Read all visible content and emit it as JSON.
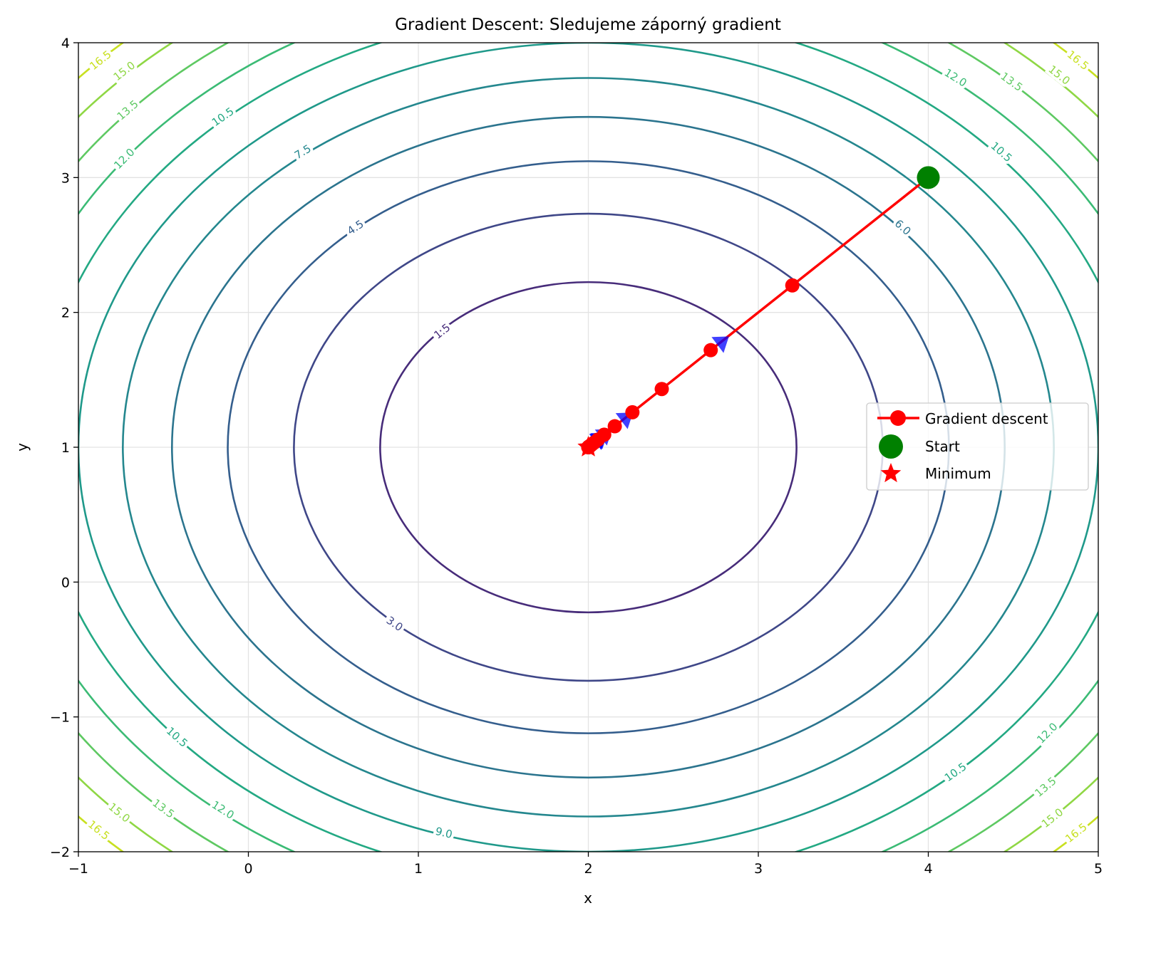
{
  "chart_data": {
    "type": "line",
    "title": "Gradient Descent: Sledujeme záporný gradient",
    "xlabel": "x",
    "ylabel": "y",
    "xlim": [
      -1,
      5
    ],
    "ylim": [
      -2,
      4
    ],
    "xticks": [
      -1,
      0,
      1,
      2,
      3,
      4,
      5
    ],
    "xtick_labels": [
      "−1",
      "0",
      "1",
      "2",
      "3",
      "4",
      "5"
    ],
    "yticks": [
      -2,
      -1,
      0,
      1,
      2,
      3,
      4
    ],
    "ytick_labels": [
      "−2",
      "−1",
      "0",
      "1",
      "2",
      "3",
      "4"
    ],
    "grid": true,
    "function": "f(x,y) = (x-2)^2 + (y-1)^2",
    "contour": {
      "center": [
        2,
        1
      ],
      "levels": [
        1.5,
        3.0,
        4.5,
        6.0,
        7.5,
        9.0,
        10.5,
        12.0,
        13.5,
        15.0,
        16.5
      ],
      "colors": [
        "#472c7a",
        "#3f4788",
        "#345e8d",
        "#2b748e",
        "#24878e",
        "#1f998a",
        "#23a983",
        "#3bbb75",
        "#5ec962",
        "#8fd744",
        "#c8e020"
      ],
      "labels": [
        {
          "text": "1.5",
          "level": 1.5,
          "at": [
            [
              1.14,
              1.86
            ]
          ]
        },
        {
          "text": "3.0",
          "level": 3.0,
          "at": [
            [
              0.86,
              -0.31
            ]
          ]
        },
        {
          "text": "4.5",
          "level": 4.5,
          "at": [
            [
              0.63,
              2.63
            ]
          ]
        },
        {
          "text": "6.0",
          "level": 6.0,
          "at": [
            [
              3.85,
              2.63
            ]
          ]
        },
        {
          "text": "7.5",
          "level": 7.5,
          "at": [
            [
              0.32,
              3.19
            ]
          ]
        },
        {
          "text": "9.0",
          "level": 9.0,
          "at": [
            [
              1.15,
              -1.86
            ]
          ]
        },
        {
          "text": "10.5",
          "level": 10.5,
          "at": [
            [
              -0.15,
              3.45
            ],
            [
              4.43,
              3.19
            ],
            [
              -0.42,
              -1.15
            ],
            [
              4.16,
              -1.41
            ]
          ]
        },
        {
          "text": "12.0",
          "level": 12.0,
          "at": [
            [
              -0.73,
              3.14
            ],
            [
              4.16,
              3.74
            ],
            [
              -0.15,
              -1.69
            ],
            [
              4.7,
              -1.12
            ]
          ]
        },
        {
          "text": "13.5",
          "level": 13.5,
          "at": [
            [
              -0.71,
              3.5
            ],
            [
              4.49,
              3.71
            ],
            [
              -0.5,
              -1.68
            ],
            [
              4.69,
              -1.52
            ]
          ]
        },
        {
          "text": "15.0",
          "level": 15.0,
          "at": [
            [
              -0.73,
              3.79
            ],
            [
              4.77,
              3.76
            ],
            [
              -0.76,
              -1.71
            ],
            [
              4.73,
              -1.75
            ]
          ]
        },
        {
          "text": "16.5",
          "level": 16.5,
          "at": [
            [
              -0.87,
              3.87
            ],
            [
              4.88,
              3.87
            ],
            [
              -0.88,
              -1.84
            ],
            [
              4.87,
              -1.86
            ]
          ]
        }
      ]
    },
    "series": [
      {
        "name": "Gradient descent",
        "color": "#ff0000",
        "x": [
          4.0,
          3.2,
          2.72,
          2.432,
          2.2592,
          2.1555,
          2.0933,
          2.056,
          2.0336,
          2.0202,
          2.0121,
          2.0073,
          2.0044,
          2.0026,
          2.0016,
          2.0009,
          2.0006,
          2.0003,
          2.0002,
          2.0001,
          2.0001
        ],
        "y": [
          3.0,
          2.2,
          1.72,
          1.432,
          1.2592,
          1.1555,
          1.0933,
          1.056,
          1.0336,
          1.0202,
          1.0121,
          1.0073,
          1.0044,
          1.0026,
          1.0016,
          1.0009,
          1.0006,
          1.0003,
          1.0002,
          1.0001,
          1.0001
        ]
      }
    ],
    "arrows": {
      "color": "#0000ff",
      "at_steps": [
        2,
        5,
        8,
        11,
        14,
        17
      ]
    },
    "start": {
      "name": "Start",
      "x": 4,
      "y": 3,
      "color": "#008000"
    },
    "minimum": {
      "name": "Minimum",
      "x": 2,
      "y": 1,
      "color": "#ff0000"
    },
    "legend": {
      "placement": "center-right",
      "entries": [
        "Gradient descent",
        "Start",
        "Minimum"
      ]
    }
  }
}
